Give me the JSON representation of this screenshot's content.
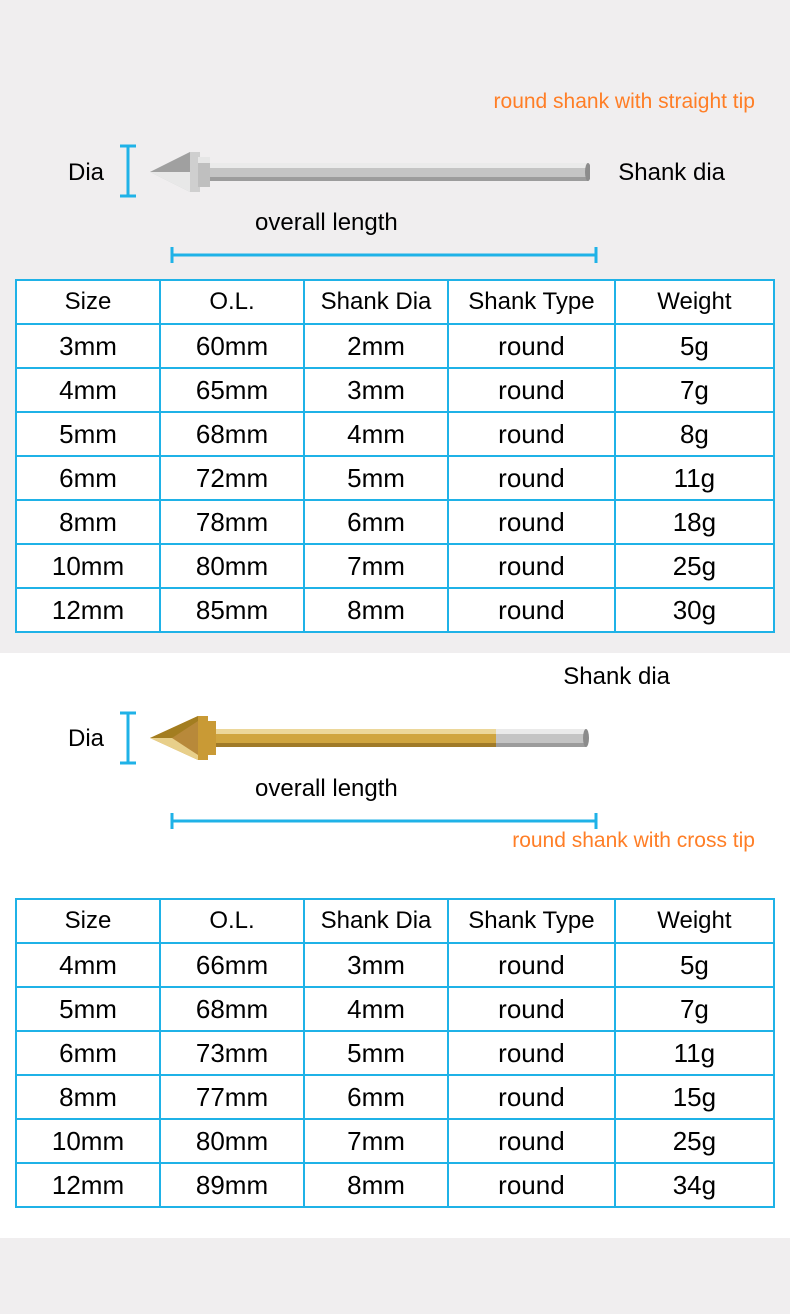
{
  "section1": {
    "caption": "round shank with straight tip",
    "labels": {
      "dia": "Dia",
      "shank_dia": "Shank dia",
      "overall_length": "overall length"
    },
    "diagram_colors": {
      "line_color": "#1fb2e7",
      "bit_body": "#b8b8b8",
      "bit_highlight": "#e6e6e6",
      "bit_dark": "#7a7a7a"
    }
  },
  "section2": {
    "caption": "round shank with cross tip",
    "labels": {
      "dia": "Dia",
      "shank_dia": "Shank dia",
      "overall_length": "overall length"
    },
    "diagram_colors": {
      "line_color": "#1fb2e7",
      "bit_gold": "#d4a843",
      "bit_gold_light": "#e8cf8a",
      "bit_gold_dark": "#a37d20",
      "bit_shank": "#c2c2c2"
    }
  },
  "table_headers": {
    "size": "Size",
    "ol": "O.L.",
    "shank_dia": "Shank Dia",
    "shank_type": "Shank Type",
    "weight": "Weight"
  },
  "table1_rows": [
    {
      "size": "3mm",
      "ol": "60mm",
      "shank": "2mm",
      "type": "round",
      "weight": "5g"
    },
    {
      "size": "4mm",
      "ol": "65mm",
      "shank": "3mm",
      "type": "round",
      "weight": "7g"
    },
    {
      "size": "5mm",
      "ol": "68mm",
      "shank": "4mm",
      "type": "round",
      "weight": "8g"
    },
    {
      "size": "6mm",
      "ol": "72mm",
      "shank": "5mm",
      "type": "round",
      "weight": "11g"
    },
    {
      "size": "8mm",
      "ol": "78mm",
      "shank": "6mm",
      "type": "round",
      "weight": "18g"
    },
    {
      "size": "10mm",
      "ol": "80mm",
      "shank": "7mm",
      "type": "round",
      "weight": "25g"
    },
    {
      "size": "12mm",
      "ol": "85mm",
      "shank": "8mm",
      "type": "round",
      "weight": "30g"
    }
  ],
  "table2_rows": [
    {
      "size": "4mm",
      "ol": "66mm",
      "shank": "3mm",
      "type": "round",
      "weight": "5g"
    },
    {
      "size": "5mm",
      "ol": "68mm",
      "shank": "4mm",
      "type": "round",
      "weight": "7g"
    },
    {
      "size": "6mm",
      "ol": "73mm",
      "shank": "5mm",
      "type": "round",
      "weight": "11g"
    },
    {
      "size": "8mm",
      "ol": "77mm",
      "shank": "6mm",
      "type": "round",
      "weight": "15g"
    },
    {
      "size": "10mm",
      "ol": "80mm",
      "shank": "7mm",
      "type": "round",
      "weight": "25g"
    },
    {
      "size": "12mm",
      "ol": "89mm",
      "shank": "8mm",
      "type": "round",
      "weight": "34g"
    }
  ],
  "styles": {
    "border_color": "#1fb2e7",
    "caption_color": "#ff7e26",
    "bg_color": "#f0eeef",
    "header_fontsize": 24,
    "cell_fontsize": 26,
    "label_fontsize": 24
  }
}
